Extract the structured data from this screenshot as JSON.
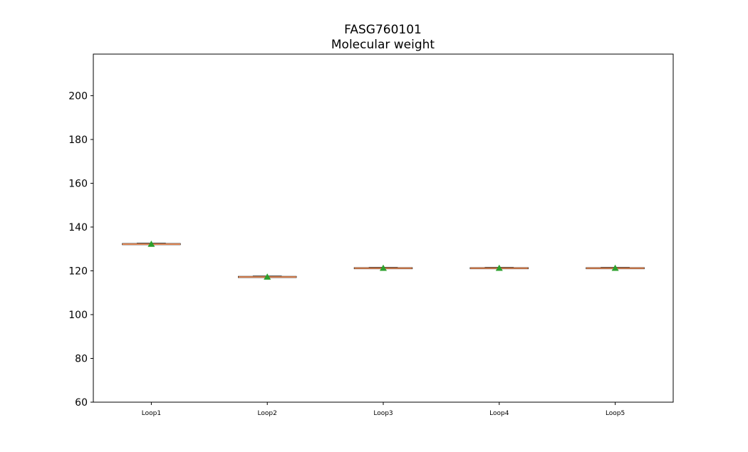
{
  "chart_data": {
    "type": "box",
    "title_line1": "FASG760101",
    "title_line2": "Molecular weight",
    "xlabel": "",
    "ylabel": "",
    "ylim": [
      60,
      219
    ],
    "yticks": [
      60,
      80,
      100,
      120,
      140,
      160,
      180,
      200
    ],
    "categories": [
      "Loop1",
      "Loop2",
      "Loop3",
      "Loop4",
      "Loop5"
    ],
    "values": [
      132.2,
      117.2,
      121.2,
      121.2,
      121.2
    ],
    "showmeans": true,
    "grid": false,
    "colors": {
      "median": "#dd8452",
      "box": "#000000",
      "mean": "#2ca02c",
      "axis": "#000000"
    }
  }
}
